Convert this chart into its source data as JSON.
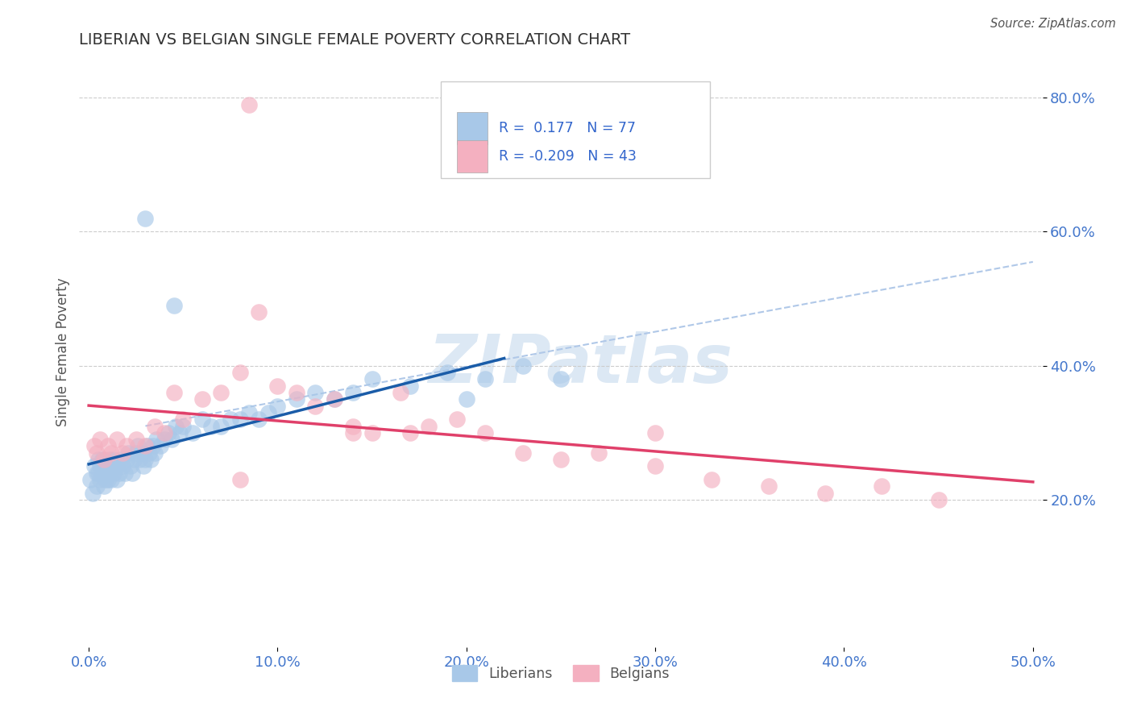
{
  "title": "LIBERIAN VS BELGIAN SINGLE FEMALE POVERTY CORRELATION CHART",
  "source": "Source: ZipAtlas.com",
  "ylabel": "Single Female Poverty",
  "xlim": [
    -0.005,
    0.505
  ],
  "ylim": [
    -0.02,
    0.86
  ],
  "x_ticks": [
    0.0,
    0.1,
    0.2,
    0.3,
    0.4,
    0.5
  ],
  "x_tick_labels": [
    "0.0%",
    "10.0%",
    "20.0%",
    "30.0%",
    "40.0%",
    "50.0%"
  ],
  "y_ticks": [
    0.2,
    0.4,
    0.6,
    0.8
  ],
  "y_tick_labels": [
    "20.0%",
    "40.0%",
    "60.0%",
    "80.0%"
  ],
  "liberian_color": "#a8c8e8",
  "belgian_color": "#f4b0c0",
  "liberian_line_color": "#1a5ca8",
  "belgian_line_color": "#e0406a",
  "dash_line_color": "#b0c8e8",
  "watermark": "ZIPatlas",
  "watermark_color": "#dce8f4",
  "R_liberian": 0.177,
  "N_liberian": 77,
  "R_belgian": -0.209,
  "N_belgian": 43,
  "liberian_x": [
    0.001,
    0.002,
    0.003,
    0.004,
    0.004,
    0.005,
    0.005,
    0.006,
    0.006,
    0.007,
    0.007,
    0.008,
    0.008,
    0.009,
    0.009,
    0.01,
    0.01,
    0.011,
    0.011,
    0.012,
    0.012,
    0.013,
    0.013,
    0.014,
    0.015,
    0.015,
    0.016,
    0.017,
    0.018,
    0.019,
    0.02,
    0.021,
    0.022,
    0.023,
    0.024,
    0.025,
    0.026,
    0.027,
    0.028,
    0.029,
    0.03,
    0.031,
    0.032,
    0.033,
    0.034,
    0.035,
    0.036,
    0.038,
    0.04,
    0.042,
    0.044,
    0.046,
    0.048,
    0.05,
    0.055,
    0.06,
    0.065,
    0.07,
    0.075,
    0.08,
    0.085,
    0.09,
    0.095,
    0.1,
    0.11,
    0.12,
    0.13,
    0.14,
    0.15,
    0.17,
    0.19,
    0.21,
    0.23,
    0.25,
    0.03,
    0.045,
    0.2
  ],
  "liberian_y": [
    0.23,
    0.21,
    0.25,
    0.24,
    0.22,
    0.26,
    0.24,
    0.23,
    0.25,
    0.24,
    0.26,
    0.22,
    0.25,
    0.23,
    0.24,
    0.25,
    0.23,
    0.24,
    0.26,
    0.23,
    0.25,
    0.24,
    0.26,
    0.25,
    0.23,
    0.25,
    0.24,
    0.26,
    0.25,
    0.24,
    0.26,
    0.27,
    0.25,
    0.24,
    0.26,
    0.27,
    0.28,
    0.26,
    0.27,
    0.25,
    0.26,
    0.28,
    0.27,
    0.26,
    0.28,
    0.27,
    0.29,
    0.28,
    0.29,
    0.3,
    0.29,
    0.31,
    0.3,
    0.31,
    0.3,
    0.32,
    0.31,
    0.31,
    0.32,
    0.32,
    0.33,
    0.32,
    0.33,
    0.34,
    0.35,
    0.36,
    0.35,
    0.36,
    0.38,
    0.37,
    0.39,
    0.38,
    0.4,
    0.38,
    0.62,
    0.49,
    0.35
  ],
  "belgian_x": [
    0.003,
    0.004,
    0.006,
    0.008,
    0.01,
    0.012,
    0.015,
    0.018,
    0.02,
    0.025,
    0.03,
    0.035,
    0.04,
    0.045,
    0.05,
    0.06,
    0.07,
    0.08,
    0.09,
    0.1,
    0.11,
    0.12,
    0.13,
    0.14,
    0.15,
    0.165,
    0.18,
    0.195,
    0.21,
    0.23,
    0.25,
    0.27,
    0.3,
    0.33,
    0.36,
    0.39,
    0.42,
    0.45,
    0.3,
    0.14,
    0.08,
    0.17,
    0.085
  ],
  "belgian_y": [
    0.28,
    0.27,
    0.29,
    0.26,
    0.28,
    0.27,
    0.29,
    0.27,
    0.28,
    0.29,
    0.28,
    0.31,
    0.3,
    0.36,
    0.32,
    0.35,
    0.36,
    0.39,
    0.48,
    0.37,
    0.36,
    0.34,
    0.35,
    0.31,
    0.3,
    0.36,
    0.31,
    0.32,
    0.3,
    0.27,
    0.26,
    0.27,
    0.25,
    0.23,
    0.22,
    0.21,
    0.22,
    0.2,
    0.3,
    0.3,
    0.23,
    0.3,
    0.79
  ],
  "background_color": "#ffffff",
  "grid_color": "#cccccc"
}
